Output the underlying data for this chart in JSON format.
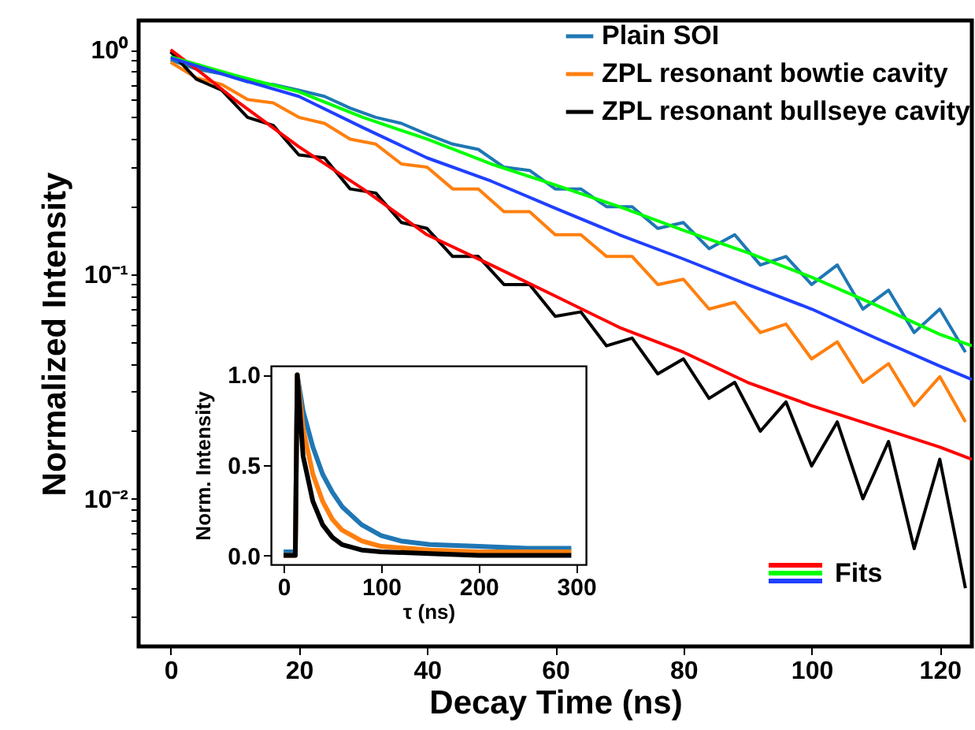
{
  "chart_data": [
    {
      "type": "line",
      "xlabel": "Decay Time (ns)",
      "ylabel": "Normalized Intensity",
      "log": "y",
      "legend": "top right",
      "xlim": [
        -5,
        125
      ],
      "xticks": [
        0,
        20,
        40,
        60,
        80,
        100,
        120
      ],
      "ylim": [
        0.0022,
        1.35
      ],
      "yticks": [
        {
          "value": 0.003,
          "label": null
        },
        {
          "value": 0.004,
          "label": null
        },
        {
          "value": 0.005,
          "label": null
        },
        {
          "value": 0.006,
          "label": null
        },
        {
          "value": 0.007,
          "label": null
        },
        {
          "value": 0.008,
          "label": null
        },
        {
          "value": 0.009,
          "label": null
        },
        {
          "value": 0.01,
          "label": "10⁻²"
        },
        {
          "value": 0.02,
          "label": null
        },
        {
          "value": 0.03,
          "label": null
        },
        {
          "value": 0.04,
          "label": null
        },
        {
          "value": 0.05,
          "label": null
        },
        {
          "value": 0.06,
          "label": null
        },
        {
          "value": 0.07,
          "label": null
        },
        {
          "value": 0.08,
          "label": null
        },
        {
          "value": 0.09,
          "label": null
        },
        {
          "value": 0.1,
          "label": "10⁻¹"
        },
        {
          "value": 0.2,
          "label": null
        },
        {
          "value": 0.3,
          "label": null
        },
        {
          "value": 0.4,
          "label": null
        },
        {
          "value": 0.5,
          "label": null
        },
        {
          "value": 0.6,
          "label": null
        },
        {
          "value": 0.7,
          "label": null
        },
        {
          "value": 0.8,
          "label": null
        },
        {
          "value": 0.9,
          "label": null
        },
        {
          "value": 1,
          "label": "10⁰"
        }
      ],
      "x": [
        0,
        4,
        8,
        12,
        16,
        20,
        24,
        28,
        32,
        36,
        40,
        44,
        48,
        52,
        56,
        60,
        64,
        68,
        72,
        76,
        80,
        84,
        88,
        92,
        96,
        100,
        104,
        108,
        112,
        116,
        120,
        124
      ],
      "annotations": [
        "Fits"
      ],
      "series": [
        {
          "name": "Plain SOI",
          "color": "#1f77b4",
          "values": [
            0.9,
            0.82,
            0.78,
            0.72,
            0.7,
            0.66,
            0.62,
            0.55,
            0.5,
            0.47,
            0.42,
            0.38,
            0.36,
            0.3,
            0.29,
            0.24,
            0.24,
            0.2,
            0.2,
            0.16,
            0.17,
            0.13,
            0.15,
            0.11,
            0.12,
            0.09,
            0.11,
            0.07,
            0.085,
            0.055,
            0.07,
            0.045
          ]
        },
        {
          "name": "ZPL resonant bowtie cavity",
          "color": "#ff7f0e",
          "values": [
            0.88,
            0.75,
            0.7,
            0.6,
            0.58,
            0.5,
            0.47,
            0.4,
            0.38,
            0.31,
            0.3,
            0.24,
            0.24,
            0.19,
            0.19,
            0.15,
            0.15,
            0.12,
            0.12,
            0.09,
            0.095,
            0.07,
            0.075,
            0.055,
            0.06,
            0.042,
            0.05,
            0.033,
            0.04,
            0.026,
            0.035,
            0.022
          ]
        },
        {
          "name": "ZPL resonant bullseye cavity",
          "color": "#000000",
          "values": [
            0.98,
            0.74,
            0.66,
            0.5,
            0.46,
            0.34,
            0.33,
            0.24,
            0.23,
            0.17,
            0.16,
            0.12,
            0.12,
            0.09,
            0.09,
            0.065,
            0.068,
            0.048,
            0.052,
            0.036,
            0.042,
            0.028,
            0.033,
            0.02,
            0.027,
            0.014,
            0.022,
            0.01,
            0.018,
            0.006,
            0.015,
            0.004
          ]
        },
        {
          "color": "#ff0000",
          "x": [
            0,
            5,
            10,
            20,
            30,
            40,
            50,
            60,
            70,
            80,
            90,
            100,
            110,
            120,
            125
          ],
          "values": [
            1.0,
            0.78,
            0.6,
            0.37,
            0.24,
            0.15,
            0.11,
            0.08,
            0.058,
            0.045,
            0.033,
            0.026,
            0.021,
            0.017,
            0.015
          ]
        },
        {
          "color": "#00ff00",
          "x": [
            0,
            10,
            20,
            30,
            40,
            50,
            60,
            70,
            80,
            90,
            100,
            110,
            120,
            125
          ],
          "values": [
            0.93,
            0.77,
            0.65,
            0.5,
            0.4,
            0.31,
            0.25,
            0.2,
            0.157,
            0.125,
            0.097,
            0.073,
            0.054,
            0.048
          ]
        },
        {
          "color": "#2040ff",
          "x": [
            0,
            10,
            20,
            30,
            40,
            50,
            60,
            70,
            80,
            90,
            100,
            110,
            120,
            125
          ],
          "values": [
            0.92,
            0.75,
            0.62,
            0.45,
            0.33,
            0.26,
            0.197,
            0.15,
            0.117,
            0.09,
            0.07,
            0.052,
            0.039,
            0.034
          ]
        }
      ]
    },
    {
      "type": "line",
      "xlabel": "τ (ns)",
      "ylabel": "Norm. Intensity",
      "xlim": [
        -13,
        310
      ],
      "xticks": [
        0,
        100,
        200,
        300
      ],
      "ylim": [
        -0.05,
        1.05
      ],
      "yticks": [
        {
          "value": 0,
          "label": "0.0"
        },
        {
          "value": 0.5,
          "label": "0.5"
        },
        {
          "value": 1,
          "label": "1.0"
        }
      ],
      "series": [
        {
          "color": "#1f77b4",
          "x": [
            0,
            12,
            14,
            20,
            30,
            40,
            50,
            60,
            80,
            100,
            120,
            150,
            200,
            250,
            295
          ],
          "values": [
            0.02,
            0.02,
            1.0,
            0.8,
            0.6,
            0.45,
            0.35,
            0.27,
            0.17,
            0.11,
            0.08,
            0.06,
            0.05,
            0.04,
            0.04
          ]
        },
        {
          "color": "#ff7f0e",
          "x": [
            0,
            12,
            14,
            20,
            30,
            40,
            50,
            60,
            80,
            100,
            150,
            200,
            295
          ],
          "values": [
            0,
            0,
            1.0,
            0.7,
            0.45,
            0.3,
            0.2,
            0.14,
            0.08,
            0.05,
            0.03,
            0.02,
            0.02
          ]
        },
        {
          "color": "#000000",
          "x": [
            0,
            12,
            14,
            20,
            30,
            40,
            50,
            60,
            80,
            100,
            150,
            200,
            295
          ],
          "values": [
            0,
            0,
            1.0,
            0.55,
            0.3,
            0.17,
            0.1,
            0.06,
            0.03,
            0.02,
            0.01,
            0.0,
            0.0
          ]
        }
      ]
    }
  ]
}
